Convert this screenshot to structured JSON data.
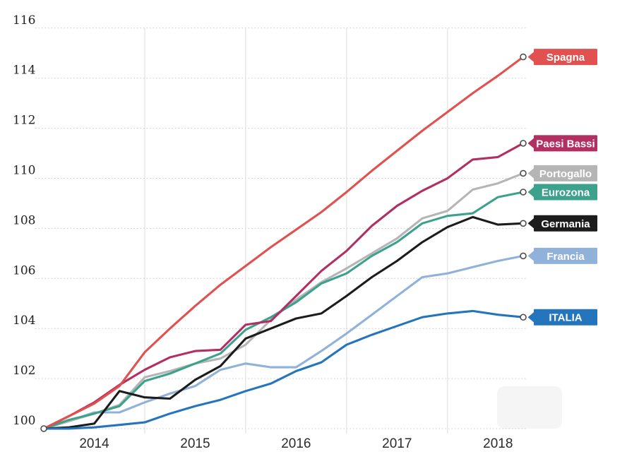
{
  "chart_data": {
    "type": "line",
    "x_quarters": [
      "2014-Q1",
      "2014-Q2",
      "2014-Q3",
      "2014-Q4",
      "2015-Q1",
      "2015-Q2",
      "2015-Q3",
      "2015-Q4",
      "2016-Q1",
      "2016-Q2",
      "2016-Q3",
      "2016-Q4",
      "2017-Q1",
      "2017-Q2",
      "2017-Q3",
      "2017-Q4",
      "2018-Q1",
      "2018-Q2",
      "2018-Q3",
      "2018-Q4"
    ],
    "year_tick_labels": [
      "2014",
      "2015",
      "2016",
      "2017",
      "2018"
    ],
    "year_tick_point_indices": [
      2,
      6,
      10,
      14,
      18
    ],
    "year_boundary_gridline_indices": [
      4,
      8,
      12,
      16
    ],
    "y_ticks": [
      100,
      102,
      104,
      106,
      108,
      110,
      112,
      114,
      116
    ],
    "ylim": [
      100,
      116
    ],
    "grid": {
      "horizontal": "dotted",
      "vertical": "solid-year-boundaries"
    },
    "legend_position": "right-end-tags",
    "start_value": 100,
    "series": [
      {
        "name": "Spagna",
        "color": "#e0514f",
        "values": [
          100,
          100.5,
          101.0,
          101.7,
          103.05,
          104.0,
          104.9,
          105.75,
          106.5,
          107.25,
          107.95,
          108.65,
          109.45,
          110.3,
          111.1,
          111.9,
          112.65,
          113.4,
          114.1,
          114.85
        ]
      },
      {
        "name": "Paesi Bassi",
        "color": "#b12f62",
        "values": [
          100,
          100.5,
          101.05,
          101.75,
          102.35,
          102.85,
          103.1,
          103.15,
          104.15,
          104.3,
          105.3,
          106.3,
          107.1,
          108.1,
          108.9,
          109.5,
          110.0,
          110.75,
          110.85,
          111.4
        ]
      },
      {
        "name": "Portogallo",
        "color": "#b5b5b5",
        "values": [
          100,
          100.3,
          100.6,
          100.95,
          102.05,
          102.3,
          102.6,
          102.8,
          103.35,
          104.35,
          105.15,
          105.85,
          106.4,
          107.0,
          107.6,
          108.4,
          108.7,
          109.55,
          109.8,
          110.2
        ]
      },
      {
        "name": "Eurozona",
        "color": "#3ca28b",
        "values": [
          100,
          100.35,
          100.6,
          100.9,
          101.9,
          102.2,
          102.6,
          103.0,
          103.95,
          104.45,
          105.05,
          105.8,
          106.2,
          106.9,
          107.45,
          108.2,
          108.5,
          108.6,
          109.25,
          109.45
        ]
      },
      {
        "name": "Germania",
        "color": "#1c1c1c",
        "values": [
          100,
          100.05,
          100.2,
          101.5,
          101.25,
          101.2,
          101.95,
          102.5,
          103.6,
          104.0,
          104.4,
          104.6,
          105.3,
          106.05,
          106.7,
          107.45,
          108.05,
          108.45,
          108.15,
          108.2
        ]
      },
      {
        "name": "Francia",
        "color": "#90b2da",
        "values": [
          100,
          100.3,
          100.65,
          100.65,
          101.05,
          101.4,
          101.7,
          102.35,
          102.6,
          102.45,
          102.45,
          103.1,
          103.8,
          104.55,
          105.3,
          106.05,
          106.2,
          106.45,
          106.7,
          106.9
        ]
      },
      {
        "name": "ITALIA",
        "color": "#2475bb",
        "values": [
          100,
          100.0,
          100.05,
          100.15,
          100.25,
          100.6,
          100.9,
          101.15,
          101.5,
          101.8,
          102.3,
          102.65,
          103.35,
          103.75,
          104.1,
          104.45,
          104.6,
          104.7,
          104.55,
          104.45
        ]
      }
    ]
  }
}
